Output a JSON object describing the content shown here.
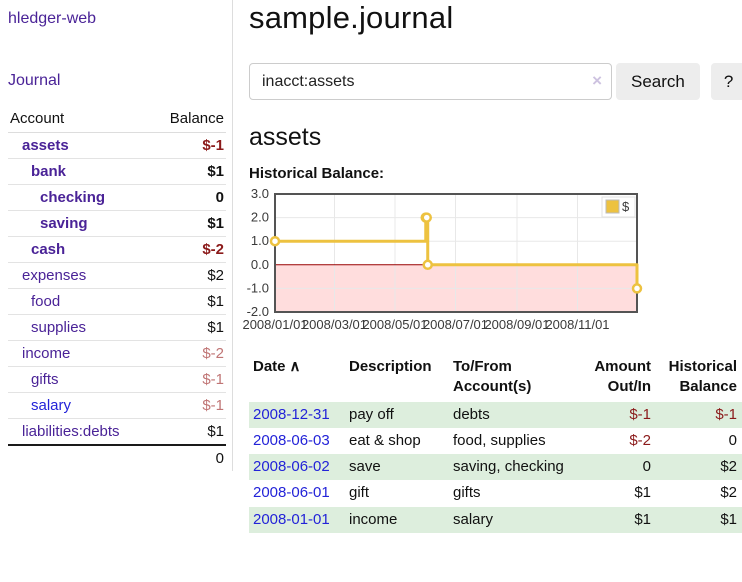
{
  "app": {
    "brand": "hledger-web",
    "nav_journal": "Journal"
  },
  "sidebar": {
    "header": {
      "account": "Account",
      "balance": "Balance"
    },
    "accounts": [
      {
        "name": "assets",
        "balance": "$-1",
        "depth": 1,
        "bold": true,
        "neg": "dark",
        "unvisited": false
      },
      {
        "name": "bank",
        "balance": "$1",
        "depth": 2,
        "bold": true,
        "neg": null,
        "unvisited": false
      },
      {
        "name": "checking",
        "balance": "0",
        "depth": 3,
        "bold": true,
        "neg": null,
        "unvisited": false
      },
      {
        "name": "saving",
        "balance": "$1",
        "depth": 3,
        "bold": true,
        "neg": null,
        "unvisited": false
      },
      {
        "name": "cash",
        "balance": "$-2",
        "depth": 2,
        "bold": true,
        "neg": "dark",
        "unvisited": false
      },
      {
        "name": "expenses",
        "balance": "$2",
        "depth": 1,
        "bold": false,
        "neg": null,
        "unvisited": false
      },
      {
        "name": "food",
        "balance": "$1",
        "depth": 2,
        "bold": false,
        "neg": null,
        "unvisited": false
      },
      {
        "name": "supplies",
        "balance": "$1",
        "depth": 2,
        "bold": false,
        "neg": null,
        "unvisited": false
      },
      {
        "name": "income",
        "balance": "$-2",
        "depth": 1,
        "bold": false,
        "neg": "soft",
        "unvisited": false
      },
      {
        "name": "gifts",
        "balance": "$-1",
        "depth": 2,
        "bold": false,
        "neg": "soft",
        "unvisited": false
      },
      {
        "name": "salary",
        "balance": "$-1",
        "depth": 2,
        "bold": false,
        "neg": "soft",
        "unvisited": true
      },
      {
        "name": "liabilities:debts",
        "balance": "$1",
        "depth": 1,
        "bold": false,
        "neg": null,
        "unvisited": false
      }
    ],
    "total": "0"
  },
  "main": {
    "title": "sample.journal",
    "search": {
      "value": "inacct:assets",
      "clear_icon": "×",
      "search_label": "Search",
      "help_label": "?"
    },
    "account_heading": "assets",
    "chart_label": "Historical Balance:"
  },
  "chart_data": {
    "type": "line",
    "step": true,
    "title": "Historical Balance",
    "series": [
      {
        "name": "$",
        "color": "#edc240",
        "points": [
          [
            "2008-01-01",
            1
          ],
          [
            "2008-06-01",
            2
          ],
          [
            "2008-06-02",
            2
          ],
          [
            "2008-06-03",
            0
          ],
          [
            "2008-12-31",
            -1
          ]
        ]
      }
    ],
    "xlim": [
      "2008-01-01",
      "2008-12-31"
    ],
    "ylim": [
      -2,
      3
    ],
    "yticks": [
      3,
      2,
      1,
      0,
      -1,
      -2
    ],
    "ytick_labels": [
      "3.0",
      "2.0",
      "1.0",
      "0.0",
      "-1.0",
      "-2.0"
    ],
    "xticks": [
      "2008-01-01",
      "2008-03-01",
      "2008-05-01",
      "2008-07-01",
      "2008-09-01",
      "2008-11-01"
    ],
    "xtick_labels": [
      "2008/01/01",
      "2008/03/01",
      "2008/05/01",
      "2008/07/01",
      "2008/09/01",
      "2008/11/01"
    ],
    "legend": {
      "label": "$",
      "position": "top-right"
    },
    "grid": true,
    "negative_region_color": "#ffdddd",
    "zero_line_color": "#990000",
    "border_color": "#545454",
    "grid_color": "#e8e8e8"
  },
  "register": {
    "columns": [
      {
        "label": "Date",
        "sort_icon": "∧",
        "align": "left"
      },
      {
        "label": "Description",
        "align": "left"
      },
      {
        "label": "To/From\nAccount(s)",
        "align": "left"
      },
      {
        "label": "Amount\nOut/In",
        "align": "right"
      },
      {
        "label": "Historical\nBalance",
        "align": "right"
      }
    ],
    "rows": [
      {
        "date": "2008-12-31",
        "description": "pay off",
        "accounts": "debts",
        "amount": "$-1",
        "amount_negative": true,
        "balance": "$-1",
        "balance_negative": true
      },
      {
        "date": "2008-06-03",
        "description": "eat & shop",
        "accounts": "food, supplies",
        "amount": "$-2",
        "amount_negative": true,
        "balance": "0",
        "balance_negative": false
      },
      {
        "date": "2008-06-02",
        "description": "save",
        "accounts": "saving, checking",
        "amount": "0",
        "amount_negative": false,
        "balance": "$2",
        "balance_negative": false
      },
      {
        "date": "2008-06-01",
        "description": "gift",
        "accounts": "gifts",
        "amount": "$1",
        "amount_negative": false,
        "balance": "$2",
        "balance_negative": false
      },
      {
        "date": "2008-01-01",
        "description": "income",
        "accounts": "salary",
        "amount": "$1",
        "amount_negative": false,
        "balance": "$1",
        "balance_negative": false
      }
    ]
  }
}
